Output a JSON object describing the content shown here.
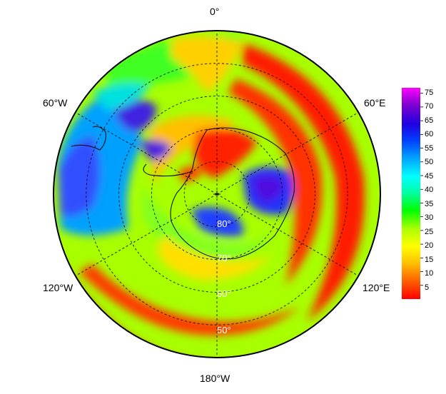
{
  "map": {
    "projection": "south-polar-stereographic",
    "longitude_labels": [
      "0°",
      "60°E",
      "120°E",
      "180°W",
      "120°W",
      "60°W"
    ],
    "latitude_labels": [
      "80°",
      "70°",
      "60°",
      "50°"
    ],
    "latitude_circles_deg": [
      80,
      70,
      60,
      50
    ],
    "longitude_lines_deg": [
      0,
      60,
      120,
      180,
      240,
      300
    ],
    "graticule_style": "dashed",
    "pole_marker": "+",
    "field_regions": [
      {
        "sector": "Southern Pacific / Ross Sea outer ring",
        "value_class": "low",
        "approx_value": 3
      },
      {
        "sector": "Indian Ocean sector outer ring",
        "value_class": "low",
        "approx_value": 5
      },
      {
        "sector": "East Antarctic interior",
        "value_class": "high",
        "approx_value": 65
      },
      {
        "sector": "Weddell / Drake Passage",
        "value_class": "high",
        "approx_value": 62
      },
      {
        "sector": "South Atlantic outer ring",
        "value_class": "medium",
        "approx_value": 35
      }
    ]
  },
  "colorbar": {
    "ticks": [
      "75",
      "70",
      "65",
      "60",
      "55",
      "50",
      "45",
      "40",
      "35",
      "30",
      "25",
      "20",
      "15",
      "10",
      "5"
    ],
    "min": 0,
    "max": 77,
    "colors": [
      "#ff0000",
      "#ff5a00",
      "#ffc000",
      "#ffff00",
      "#b0ff00",
      "#00ff00",
      "#00ff9c",
      "#00ffff",
      "#00a0ff",
      "#0040ff",
      "#2000e0",
      "#8000d0",
      "#ff00ff"
    ]
  }
}
